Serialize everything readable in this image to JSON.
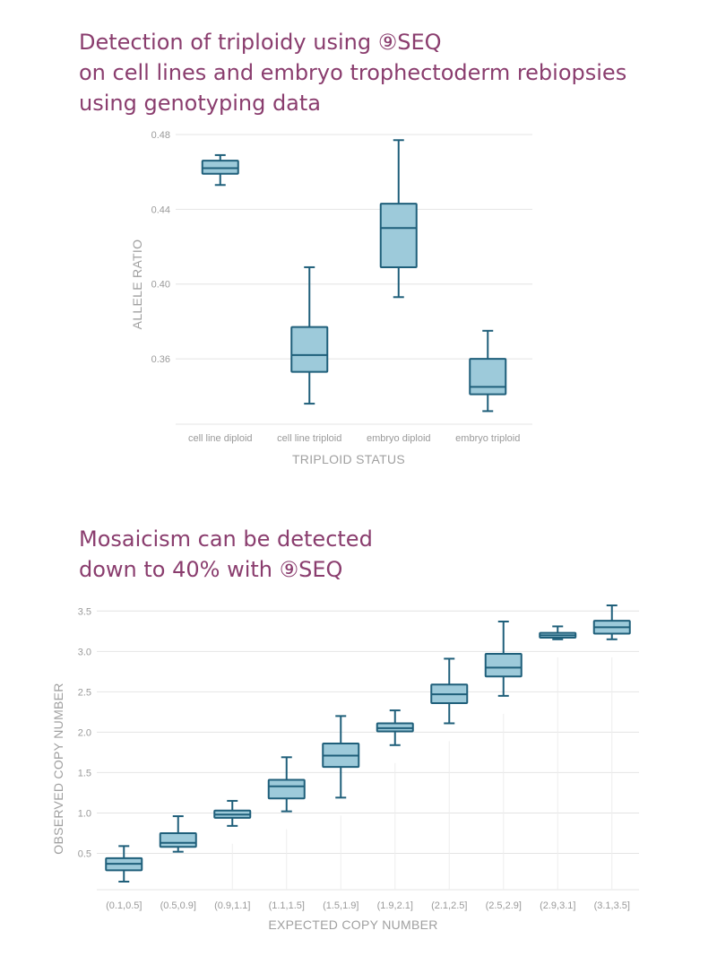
{
  "titles": {
    "chart1": [
      "Detection of triploidy using ⑨SEQ",
      "on cell lines and embryo trophectoderm rebiopsies",
      "using genotyping data"
    ],
    "chart2": [
      "Mosaicism can be detected",
      "down to 40% with ⑨SEQ"
    ]
  },
  "colors": {
    "title": "#8a3d6e",
    "box_fill": "#9dcada",
    "box_stroke": "#1f5f7a",
    "grid": "#e4e4e4"
  },
  "chart_data": [
    {
      "type": "box",
      "xlabel": "TRIPLOID STATUS",
      "ylabel": "ALLELE RATIO",
      "ylim": [
        0.325,
        0.48
      ],
      "yticks": [
        "0.36",
        "0.40",
        "0.44",
        "0.48"
      ],
      "ytick_values": [
        0.36,
        0.4,
        0.44,
        0.48
      ],
      "grid": true,
      "categories": [
        "cell line diploid",
        "cell line triploid",
        "embryo diploid",
        "embryo triploid"
      ],
      "boxes": [
        {
          "min": 0.453,
          "q1": 0.459,
          "median": 0.462,
          "q3": 0.466,
          "max": 0.469
        },
        {
          "min": 0.336,
          "q1": 0.353,
          "median": 0.362,
          "q3": 0.377,
          "max": 0.409
        },
        {
          "min": 0.393,
          "q1": 0.409,
          "median": 0.43,
          "q3": 0.443,
          "max": 0.477
        },
        {
          "min": 0.332,
          "q1": 0.341,
          "median": 0.345,
          "q3": 0.36,
          "max": 0.375
        }
      ]
    },
    {
      "type": "box",
      "xlabel": "EXPECTED COPY NUMBER",
      "ylabel": "OBSERVED COPY NUMBER",
      "ylim": [
        0.05,
        3.57
      ],
      "yticks": [
        "0.5",
        "1.0",
        "1.5",
        "2.0",
        "2.5",
        "3.0",
        "3.5"
      ],
      "ytick_values": [
        0.5,
        1.0,
        1.5,
        2.0,
        2.5,
        3.0,
        3.5
      ],
      "grid": true,
      "categories": [
        "(0.1,0.5]",
        "(0.5,0.9]",
        "(0.9,1.1]",
        "(1.1,1.5]",
        "(1.5,1.9]",
        "(1.9,2.1]",
        "(2.1,2.5]",
        "(2.5,2.9]",
        "(2.9,3.1]",
        "(3.1,3.5]"
      ],
      "boxes": [
        {
          "min": 0.15,
          "q1": 0.29,
          "median": 0.37,
          "q3": 0.44,
          "max": 0.59
        },
        {
          "min": 0.52,
          "q1": 0.58,
          "median": 0.63,
          "q3": 0.75,
          "max": 0.96
        },
        {
          "min": 0.84,
          "q1": 0.94,
          "median": 0.98,
          "q3": 1.03,
          "max": 1.15
        },
        {
          "min": 1.02,
          "q1": 1.18,
          "median": 1.33,
          "q3": 1.41,
          "max": 1.69
        },
        {
          "min": 1.19,
          "q1": 1.57,
          "median": 1.71,
          "q3": 1.86,
          "max": 2.2
        },
        {
          "min": 1.84,
          "q1": 2.01,
          "median": 2.05,
          "q3": 2.11,
          "max": 2.27
        },
        {
          "min": 2.11,
          "q1": 2.36,
          "median": 2.47,
          "q3": 2.59,
          "max": 2.91
        },
        {
          "min": 2.45,
          "q1": 2.69,
          "median": 2.8,
          "q3": 2.97,
          "max": 3.37
        },
        {
          "min": 3.15,
          "q1": 3.17,
          "median": 3.2,
          "q3": 3.23,
          "max": 3.31
        },
        {
          "min": 3.15,
          "q1": 3.22,
          "median": 3.3,
          "q3": 3.38,
          "max": 3.57
        }
      ]
    }
  ]
}
